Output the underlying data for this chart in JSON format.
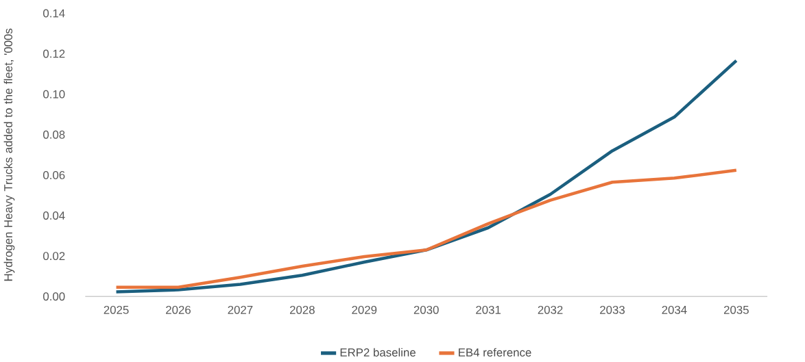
{
  "chart_data": {
    "type": "line",
    "ylabel": "Hydrogen Heavy Trucks added to the fleet, '000s",
    "categories": [
      "2025",
      "2026",
      "2027",
      "2028",
      "2029",
      "2030",
      "2031",
      "2032",
      "2033",
      "2034",
      "2035"
    ],
    "series": [
      {
        "name": "ERP2 baseline",
        "color": "#1b5f7f",
        "values": [
          0.0023,
          0.0033,
          0.006,
          0.0105,
          0.017,
          0.023,
          0.034,
          0.0505,
          0.072,
          0.0887,
          0.1166
        ]
      },
      {
        "name": "EB4 reference",
        "color": "#e8743b",
        "values": [
          0.0046,
          0.0046,
          0.0095,
          0.015,
          0.0197,
          0.023,
          0.036,
          0.0476,
          0.0565,
          0.0585,
          0.0624
        ]
      }
    ],
    "ylim": [
      0,
      0.14
    ],
    "yticks": [
      {
        "value": 0,
        "label": "0.00"
      },
      {
        "value": 0.02,
        "label": "0.02"
      },
      {
        "value": 0.04,
        "label": "0.04"
      },
      {
        "value": 0.06,
        "label": "0.06"
      },
      {
        "value": 0.08,
        "label": "0.08"
      },
      {
        "value": 0.1,
        "label": "0.10"
      },
      {
        "value": 0.12,
        "label": "0.12"
      },
      {
        "value": 0.14,
        "label": "0.14"
      }
    ],
    "grid": false,
    "legend": "bottom",
    "marker": "none",
    "line_style": "solid"
  }
}
